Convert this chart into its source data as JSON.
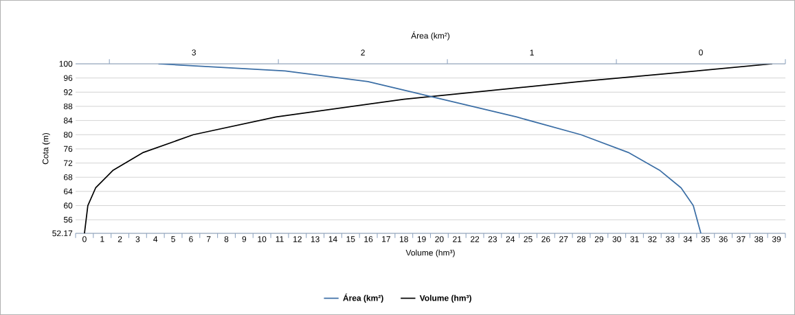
{
  "chart_data": {
    "type": "line",
    "xlabel": "Volume (hm³)",
    "ylabel": "Cota (m)",
    "x2label": "Área (km²)",
    "xlim": [
      -0.5,
      39.5
    ],
    "xticks": [
      {
        "value": -0.5,
        "label": null
      },
      0,
      {
        "value": 0.5,
        "label": null
      },
      1,
      {
        "value": 1.5,
        "label": null
      },
      2,
      {
        "value": 2.5,
        "label": null
      },
      3,
      {
        "value": 3.5,
        "label": null
      },
      4,
      {
        "value": 4.5,
        "label": null
      },
      5,
      {
        "value": 5.5,
        "label": null
      },
      6,
      {
        "value": 6.5,
        "label": null
      },
      7,
      {
        "value": 7.5,
        "label": null
      },
      8,
      {
        "value": 8.5,
        "label": null
      },
      9,
      {
        "value": 9.5,
        "label": null
      },
      10,
      {
        "value": 10.5,
        "label": null
      },
      11,
      {
        "value": 11.5,
        "label": null
      },
      12,
      {
        "value": 12.5,
        "label": null
      },
      13,
      {
        "value": 13.5,
        "label": null
      },
      14,
      {
        "value": 14.5,
        "label": null
      },
      15,
      {
        "value": 15.5,
        "label": null
      },
      16,
      {
        "value": 16.5,
        "label": null
      },
      17,
      {
        "value": 17.5,
        "label": null
      },
      18,
      {
        "value": 18.5,
        "label": null
      },
      19,
      {
        "value": 19.5,
        "label": null
      },
      20,
      {
        "value": 20.5,
        "label": null
      },
      21,
      {
        "value": 21.5,
        "label": null
      },
      22,
      {
        "value": 22.5,
        "label": null
      },
      23,
      {
        "value": 23.5,
        "label": null
      },
      24,
      {
        "value": 24.5,
        "label": null
      },
      25,
      {
        "value": 25.5,
        "label": null
      },
      26,
      {
        "value": 26.5,
        "label": null
      },
      27,
      {
        "value": 27.5,
        "label": null
      },
      28,
      {
        "value": 28.5,
        "label": null
      },
      29,
      {
        "value": 29.5,
        "label": null
      },
      30,
      {
        "value": 30.5,
        "label": null
      },
      31,
      {
        "value": 31.5,
        "label": null
      },
      32,
      {
        "value": 32.5,
        "label": null
      },
      33,
      {
        "value": 33.5,
        "label": null
      },
      34,
      {
        "value": 34.5,
        "label": null
      },
      35,
      {
        "value": 35.5,
        "label": null
      },
      36,
      {
        "value": 36.5,
        "label": null
      },
      37,
      {
        "value": 37.5,
        "label": null
      },
      38,
      {
        "value": 38.5,
        "label": null
      },
      39,
      {
        "value": 39.5,
        "label": null
      }
    ],
    "x2lim": [
      3.7,
      -0.5
    ],
    "x2ticks": [
      {
        "value": 3.5,
        "label": null
      },
      3,
      {
        "value": 2.5,
        "label": null
      },
      2,
      {
        "value": 1.5,
        "label": null
      },
      1,
      {
        "value": 0.5,
        "label": null
      },
      0,
      {
        "value": -0.5,
        "label": null
      }
    ],
    "ylim": [
      52.17,
      100
    ],
    "yticks": [
      52.17,
      56,
      60,
      64,
      68,
      72,
      76,
      80,
      84,
      88,
      92,
      96,
      100
    ],
    "grid": "y",
    "legend": "bottom",
    "series": [
      {
        "name": "Área (km²)",
        "color": "#3b6ea5",
        "axis": "x2",
        "x": [
          0.0,
          0.045,
          0.117,
          0.245,
          0.43,
          0.71,
          1.09,
          1.53,
          1.97,
          2.46,
          3.21
        ],
        "values": [
          52.17,
          60,
          65,
          70,
          75,
          80,
          85,
          90,
          95,
          98,
          100
        ]
      },
      {
        "name": "Volume (hm³)",
        "color": "#000000",
        "x": [
          0.0,
          0.19,
          0.63,
          1.62,
          3.32,
          6.14,
          10.8,
          18.0,
          27.9,
          34.5,
          38.76
        ],
        "values": [
          52.17,
          60,
          65,
          70,
          75,
          80,
          85,
          90,
          95,
          98,
          100
        ]
      }
    ]
  }
}
